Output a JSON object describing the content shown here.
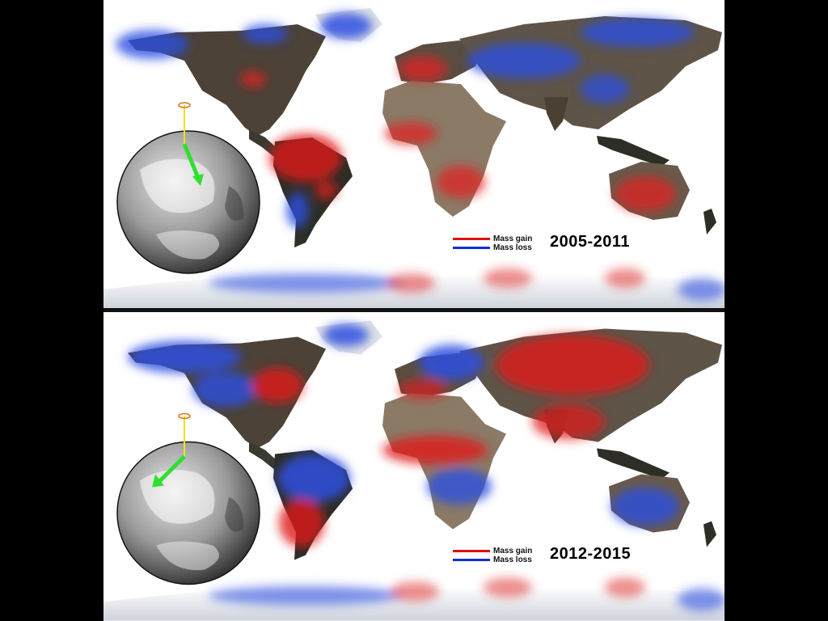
{
  "panels": [
    {
      "period": "2005-2011",
      "legend": [
        {
          "label": "Mass gain",
          "color": "#e01010"
        },
        {
          "label": "Mass loss",
          "color": "#1030d0"
        }
      ]
    },
    {
      "period": "2012-2015",
      "legend": [
        {
          "label": "Mass gain",
          "color": "#e01010"
        },
        {
          "label": "Mass loss",
          "color": "#1030d0"
        }
      ]
    }
  ]
}
